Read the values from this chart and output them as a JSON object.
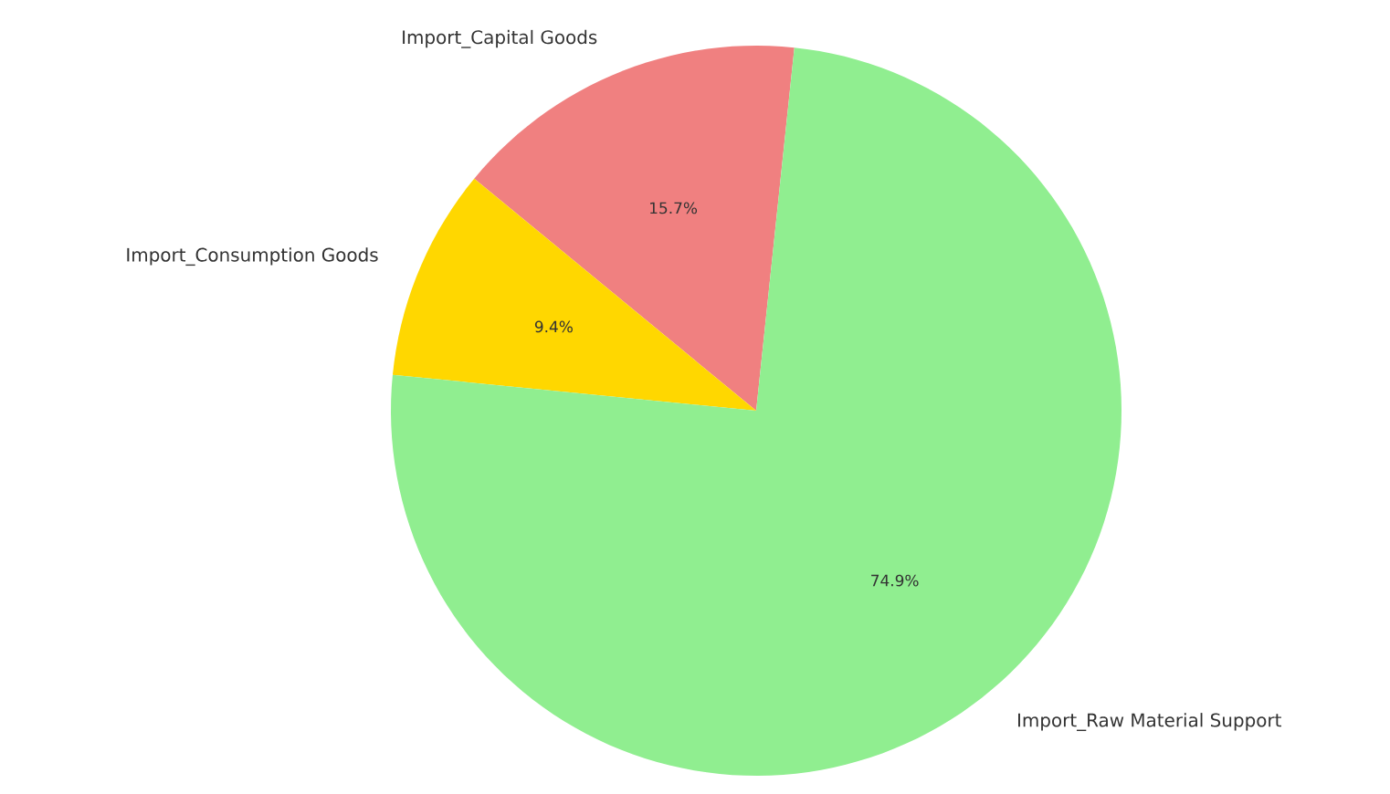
{
  "chart_data": {
    "type": "pie",
    "categories": [
      "Import_Capital Goods",
      "Import_Consumption Goods",
      "Import_Raw Material Support"
    ],
    "values": [
      15.7,
      9.4,
      74.9
    ],
    "colors": [
      "#f08080",
      "#ffd700",
      "#90ee90"
    ],
    "value_labels": [
      "15.7%",
      "9.4%",
      "74.9%"
    ]
  }
}
